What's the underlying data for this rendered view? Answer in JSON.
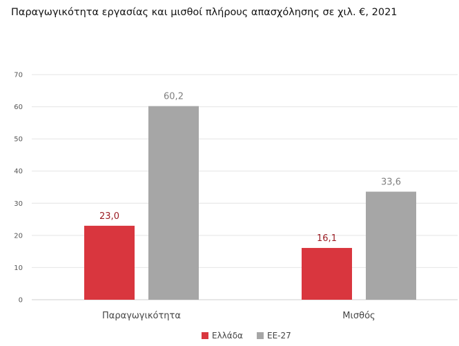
{
  "chart_data": {
    "type": "bar",
    "title": "Παραγωγικότητα εργασίας και μισθοί πλήρους απασχόλησης σε χιλ. €, 2021",
    "categories": [
      "Παραγωγικότητα",
      "Μισθός"
    ],
    "series": [
      {
        "name": "Ελλάδα",
        "values": [
          23.0,
          16.1
        ],
        "labels": [
          "23,0",
          "16,1"
        ],
        "color": "#d9363e",
        "label_color": "#9b1c23"
      },
      {
        "name": "ΕΕ-27",
        "values": [
          60.2,
          33.6
        ],
        "labels": [
          "60,2",
          "33,6"
        ],
        "color": "#a6a6a6",
        "label_color": "#7f7f7f"
      }
    ],
    "yticks": [
      "0",
      "10",
      "20",
      "30",
      "40",
      "50",
      "60",
      "70"
    ],
    "ylim": [
      0,
      70
    ],
    "grid": true,
    "legend_position": "bottom-center",
    "xlabel": "",
    "ylabel": ""
  }
}
